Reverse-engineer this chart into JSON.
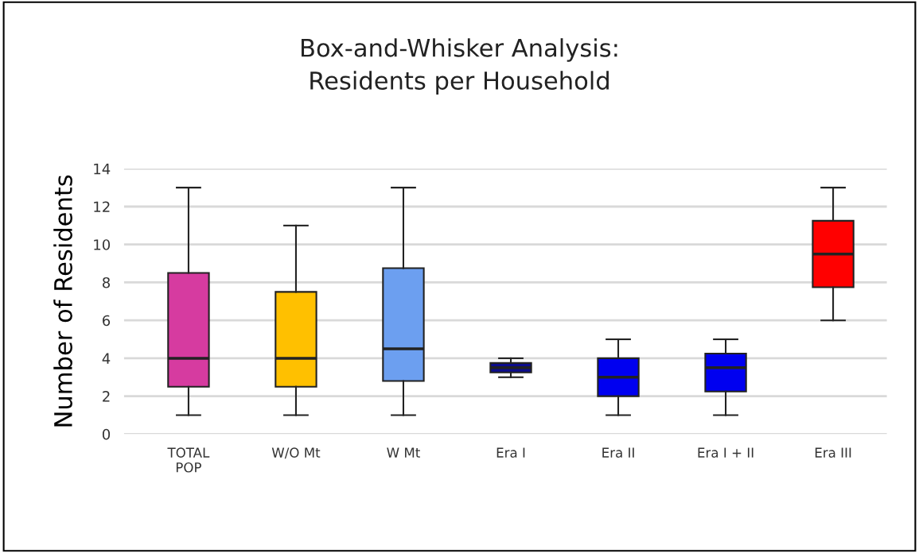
{
  "chart_data": {
    "type": "box",
    "title": "Box-and-Whisker Analysis:\nResidents per Household",
    "ylabel": "Number of Residents",
    "categories": [
      "TOTAL\nPOP",
      "W/O Mt",
      "W Mt",
      "Era I",
      "Era II",
      "Era I + II",
      "Era III"
    ],
    "colors": [
      "#d63ba0",
      "#ffc000",
      "#6c9ff0",
      "#0c0c8c",
      "#0000f0",
      "#0000f0",
      "#ff0000"
    ],
    "boxes": [
      {
        "low": 1,
        "q1": 2.5,
        "median": 4,
        "q3": 8.5,
        "high": 13
      },
      {
        "low": 1,
        "q1": 2.5,
        "median": 4,
        "q3": 7.5,
        "high": 11
      },
      {
        "low": 1,
        "q1": 2.8,
        "median": 4.5,
        "q3": 8.75,
        "high": 13
      },
      {
        "low": 3,
        "q1": 3.25,
        "median": 3.5,
        "q3": 3.75,
        "high": 4
      },
      {
        "low": 1,
        "q1": 2,
        "median": 3,
        "q3": 4,
        "high": 5
      },
      {
        "low": 1,
        "q1": 2.25,
        "median": 3.5,
        "q3": 4.25,
        "high": 5
      },
      {
        "low": 6,
        "q1": 7.75,
        "median": 9.5,
        "q3": 11.25,
        "high": 13
      }
    ],
    "ylim": [
      0,
      14
    ],
    "yticks": [
      0,
      2,
      4,
      6,
      8,
      10,
      12,
      14
    ],
    "grid": "y"
  }
}
